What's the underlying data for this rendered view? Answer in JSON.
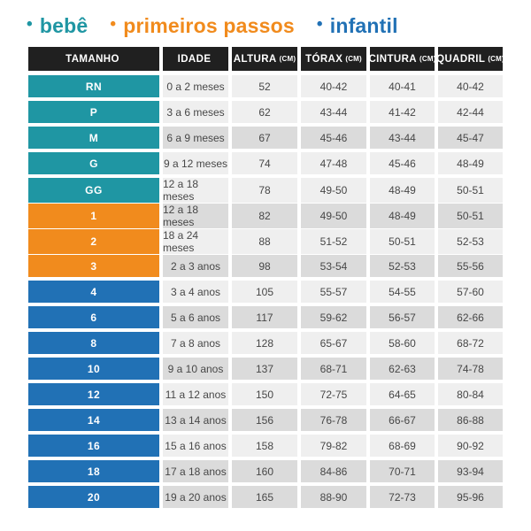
{
  "legend": {
    "items": [
      {
        "bullet": "•",
        "label": "bebê",
        "color": "#1f96a3"
      },
      {
        "bullet": "•",
        "label": "primeiros passos",
        "color": "#f18b1d"
      },
      {
        "bullet": "•",
        "label": "infantil",
        "color": "#2171b5"
      }
    ]
  },
  "table": {
    "header": {
      "bg": "#202020",
      "text_color": "#ffffff",
      "columns": [
        {
          "label": "TAMANHO",
          "unit": ""
        },
        {
          "label": "IDADE",
          "unit": ""
        },
        {
          "label": "ALTURA",
          "unit": "(CM)"
        },
        {
          "label": "TÓRAX",
          "unit": "(CM)"
        },
        {
          "label": "CINTURA",
          "unit": "(CM)"
        },
        {
          "label": "QUADRIL",
          "unit": "(CM)"
        }
      ]
    },
    "group_colors": {
      "bebe": "#1f96a3",
      "primeiros_passos": "#f18b1d",
      "infantil": "#2171b5"
    },
    "shade_colors": {
      "light": "#efefef",
      "dark": "#dbdbdb"
    },
    "cell_text_color": "#474747",
    "rows": [
      {
        "size": "RN",
        "group": "bebe",
        "age": "0 a 2 meses",
        "altura": "52",
        "torax": "40-42",
        "cintura": "40-41",
        "quadril": "40-42",
        "shade": "light"
      },
      {
        "size": "P",
        "group": "bebe",
        "age": "3 a 6 meses",
        "altura": "62",
        "torax": "43-44",
        "cintura": "41-42",
        "quadril": "42-44",
        "shade": "light"
      },
      {
        "size": "M",
        "group": "bebe",
        "age": "6 a 9 meses",
        "altura": "67",
        "torax": "45-46",
        "cintura": "43-44",
        "quadril": "45-47",
        "shade": "dark"
      },
      {
        "size": "G",
        "group": "bebe",
        "age": "9 a 12 meses",
        "altura": "74",
        "torax": "47-48",
        "cintura": "45-46",
        "quadril": "48-49",
        "shade": "light"
      },
      {
        "size": "GG",
        "group": "bebe",
        "age": "12 a 18 meses",
        "altura": "78",
        "torax": "49-50",
        "cintura": "48-49",
        "quadril": "50-51",
        "shade": "light"
      },
      {
        "size": "1",
        "group": "primeiros_passos",
        "age": "12 a 18 meses",
        "altura": "82",
        "torax": "49-50",
        "cintura": "48-49",
        "quadril": "50-51",
        "shade": "dark"
      },
      {
        "size": "2",
        "group": "primeiros_passos",
        "age": "18 a 24 meses",
        "altura": "88",
        "torax": "51-52",
        "cintura": "50-51",
        "quadril": "52-53",
        "shade": "light"
      },
      {
        "size": "3",
        "group": "primeiros_passos",
        "age": "2 a 3 anos",
        "altura": "98",
        "torax": "53-54",
        "cintura": "52-53",
        "quadril": "55-56",
        "shade": "dark"
      },
      {
        "size": "4",
        "group": "infantil",
        "age": "3 a 4 anos",
        "altura": "105",
        "torax": "55-57",
        "cintura": "54-55",
        "quadril": "57-60",
        "shade": "light"
      },
      {
        "size": "6",
        "group": "infantil",
        "age": "5 a 6 anos",
        "altura": "117",
        "torax": "59-62",
        "cintura": "56-57",
        "quadril": "62-66",
        "shade": "dark"
      },
      {
        "size": "8",
        "group": "infantil",
        "age": "7 a 8 anos",
        "altura": "128",
        "torax": "65-67",
        "cintura": "58-60",
        "quadril": "68-72",
        "shade": "light"
      },
      {
        "size": "10",
        "group": "infantil",
        "age": "9 a 10 anos",
        "altura": "137",
        "torax": "68-71",
        "cintura": "62-63",
        "quadril": "74-78",
        "shade": "dark"
      },
      {
        "size": "12",
        "group": "infantil",
        "age": "11 a 12 anos",
        "altura": "150",
        "torax": "72-75",
        "cintura": "64-65",
        "quadril": "80-84",
        "shade": "light"
      },
      {
        "size": "14",
        "group": "infantil",
        "age": "13 a 14 anos",
        "altura": "156",
        "torax": "76-78",
        "cintura": "66-67",
        "quadril": "86-88",
        "shade": "dark"
      },
      {
        "size": "16",
        "group": "infantil",
        "age": "15 a 16 anos",
        "altura": "158",
        "torax": "79-82",
        "cintura": "68-69",
        "quadril": "90-92",
        "shade": "light"
      },
      {
        "size": "18",
        "group": "infantil",
        "age": "17 a 18 anos",
        "altura": "160",
        "torax": "84-86",
        "cintura": "70-71",
        "quadril": "93-94",
        "shade": "dark"
      },
      {
        "size": "20",
        "group": "infantil",
        "age": "19 a 20 anos",
        "altura": "165",
        "torax": "88-90",
        "cintura": "72-73",
        "quadril": "95-96",
        "shade": "dark"
      }
    ]
  }
}
